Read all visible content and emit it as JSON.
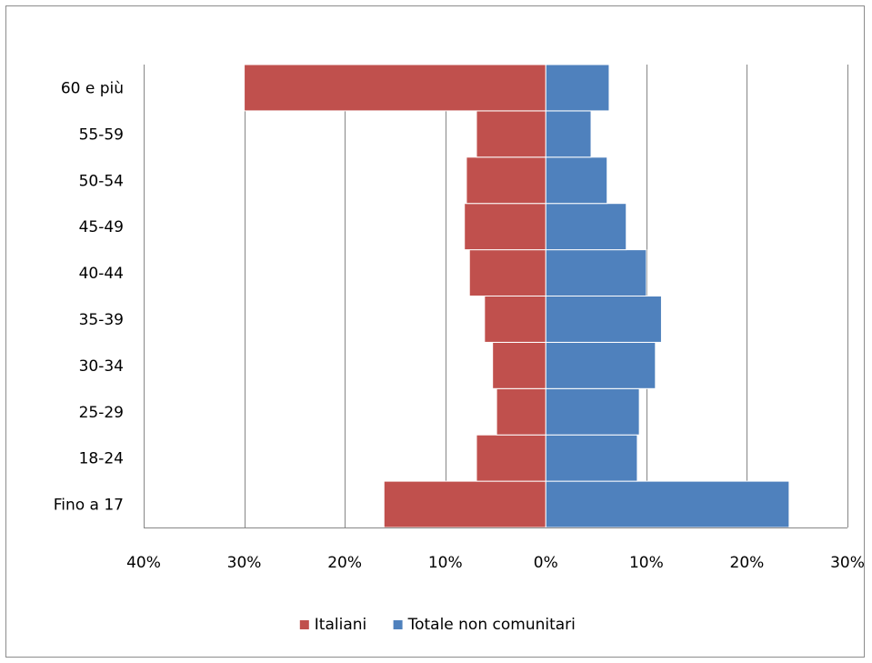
{
  "chart_data": {
    "type": "bar",
    "orientation": "horizontal",
    "categories": [
      "Fino a 17",
      "18-24",
      "25-29",
      "30-34",
      "35-39",
      "40-44",
      "45-49",
      "50-54",
      "55-59",
      "60 e più"
    ],
    "series": [
      {
        "name": "Italiani",
        "values": [
          -16.1,
          -6.9,
          -4.9,
          -5.3,
          -6.1,
          -7.6,
          -8.1,
          -7.9,
          -6.9,
          -30.0
        ],
        "color": "#c0504d"
      },
      {
        "name": "Totale non comunitari",
        "values": [
          24.2,
          9.1,
          9.3,
          10.9,
          11.5,
          10.0,
          8.0,
          6.1,
          4.5,
          6.3
        ],
        "color": "#4f81bd"
      }
    ],
    "xlim": [
      -40,
      30
    ],
    "x_ticks": [
      -40,
      -30,
      -20,
      -10,
      0,
      10,
      20,
      30
    ],
    "x_tick_labels": [
      "40%",
      "30%",
      "20%",
      "10%",
      "0%",
      "10%",
      "20%",
      "30%"
    ],
    "grid": "vertical",
    "legend_position": "bottom",
    "title": "",
    "xlabel": "",
    "ylabel": ""
  }
}
